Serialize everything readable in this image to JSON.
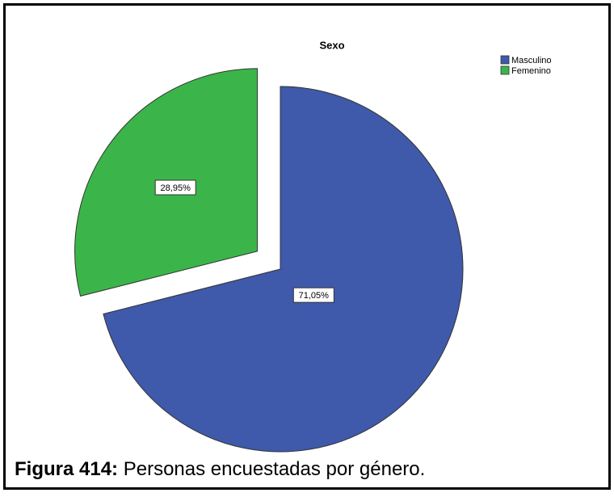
{
  "chart_data": {
    "type": "pie",
    "title": "Sexo",
    "categories": [
      "Masculino",
      "Femenino"
    ],
    "values": [
      71.05,
      28.95
    ],
    "value_labels": [
      "71,05%",
      "28,95%"
    ],
    "colors": [
      "#3f59ab",
      "#3bb54a"
    ],
    "legend": "top-right"
  },
  "caption": {
    "label": "Figura 414:",
    "text": "Personas encuestadas por género."
  }
}
